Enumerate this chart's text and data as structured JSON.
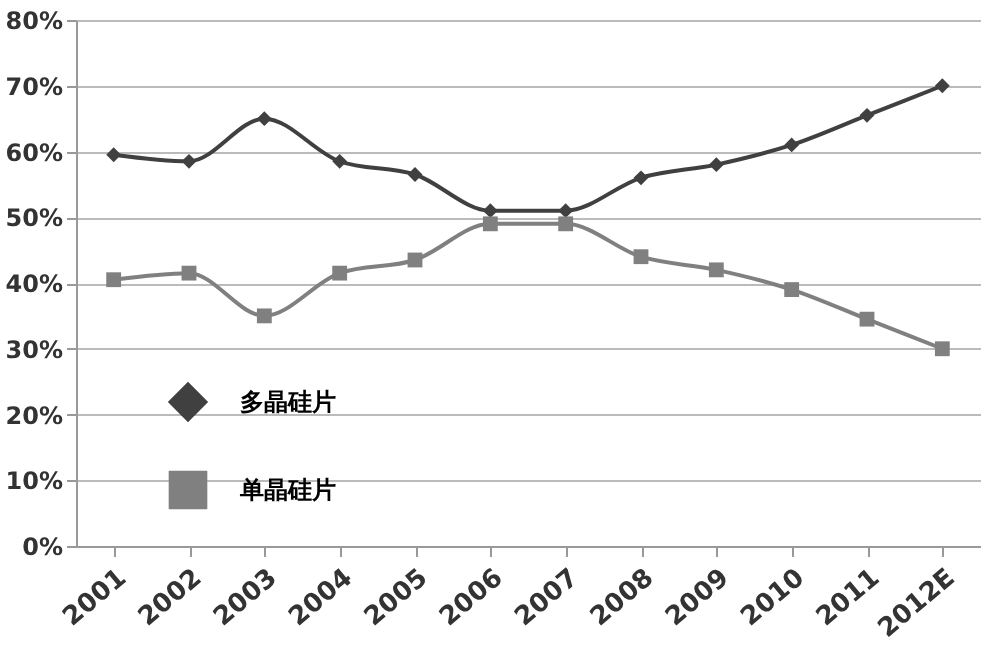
{
  "chart_data": {
    "type": "line",
    "categories": [
      "2001",
      "2002",
      "2003",
      "2004",
      "2005",
      "2006",
      "2007",
      "2008",
      "2009",
      "2010",
      "2011",
      "2012E"
    ],
    "series": [
      {
        "name": "多晶硅片",
        "color": "#404040",
        "marker": "diamond",
        "values": [
          59.5,
          58.5,
          65,
          58.5,
          56.5,
          51,
          51,
          56,
          58,
          61,
          65.5,
          70
        ]
      },
      {
        "name": "单晶硅片",
        "color": "#808080",
        "marker": "square",
        "values": [
          40.5,
          41.5,
          35,
          41.5,
          43.5,
          49,
          49,
          44,
          42,
          39,
          34.5,
          30
        ]
      }
    ],
    "ylim": [
      0,
      80
    ],
    "yticks": [
      {
        "value": 0,
        "label": "0%"
      },
      {
        "value": 10,
        "label": "10%"
      },
      {
        "value": 20,
        "label": "20%"
      },
      {
        "value": 30,
        "label": "30%"
      },
      {
        "value": 40,
        "label": "40%"
      },
      {
        "value": 50,
        "label": "50%"
      },
      {
        "value": 60,
        "label": "60%"
      },
      {
        "value": 70,
        "label": "70%"
      },
      {
        "value": 80,
        "label": "80%"
      }
    ],
    "grid": "y",
    "legend": "left",
    "line_style": "solid"
  }
}
